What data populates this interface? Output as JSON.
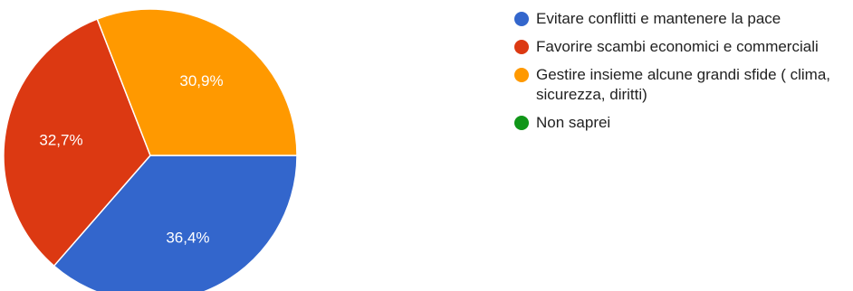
{
  "chart_data": {
    "type": "pie",
    "slices": [
      {
        "label": "Evitare conflitti e mantenere la pace",
        "value": 36.4,
        "value_label": "36,4%",
        "color": "#3366cc"
      },
      {
        "label": "Favorire scambi economici e commerciali",
        "value": 32.7,
        "value_label": "32,7%",
        "color": "#dc3912"
      },
      {
        "label": "Gestire insieme alcune grandi sfide ( clima, sicurezza, diritti)",
        "value": 30.9,
        "value_label": "30,9%",
        "color": "#ff9900"
      },
      {
        "label": "Non saprei",
        "value": 0,
        "value_label": "",
        "color": "#109618"
      }
    ],
    "legend_position": "right"
  }
}
